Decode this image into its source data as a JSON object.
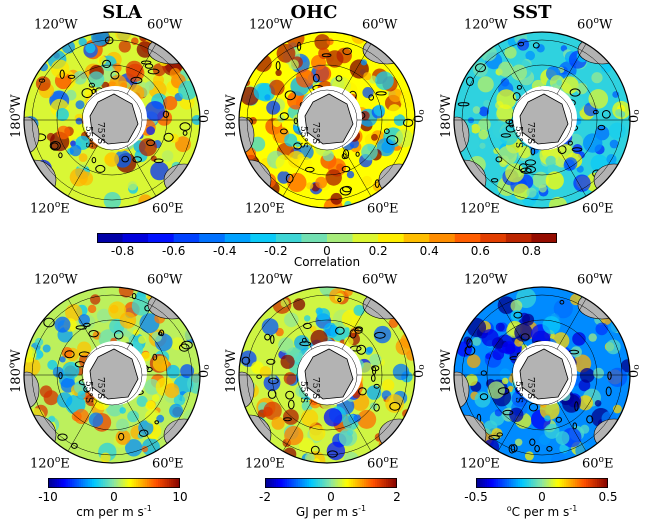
{
  "columns": [
    "SLA",
    "OHC",
    "SST"
  ],
  "lon_labels": {
    "w120": "120",
    "w60": "60",
    "w180": "180",
    "zero": "0",
    "e120": "120",
    "e60": "60",
    "deg": "o",
    "W": "W",
    "E": "E"
  },
  "lat_labels": [
    "55°S",
    "75°S"
  ],
  "correlation_bar": {
    "label": "Correlation",
    "ticks": [
      "-0.8",
      "-0.6",
      "-0.4",
      "-0.2",
      "0",
      "0.2",
      "0.4",
      "0.6",
      "0.8"
    ],
    "range": [
      -0.9,
      0.9
    ]
  },
  "regression_bars": [
    {
      "ticks": [
        "-10",
        "0",
        "10"
      ],
      "unit_main": "cm per m s",
      "unit_exp": "-1",
      "range": [
        -10,
        10
      ]
    },
    {
      "ticks": [
        "-2",
        "0",
        "2"
      ],
      "unit_main": "GJ per m s",
      "unit_exp": "-1",
      "range": [
        -2,
        2
      ]
    },
    {
      "ticks": [
        "-0.5",
        "0",
        "0.5"
      ],
      "unit_prefix_sup": "o",
      "unit_main": "C per m s",
      "unit_exp": "-1",
      "range": [
        -0.5,
        0.5
      ]
    }
  ]
}
